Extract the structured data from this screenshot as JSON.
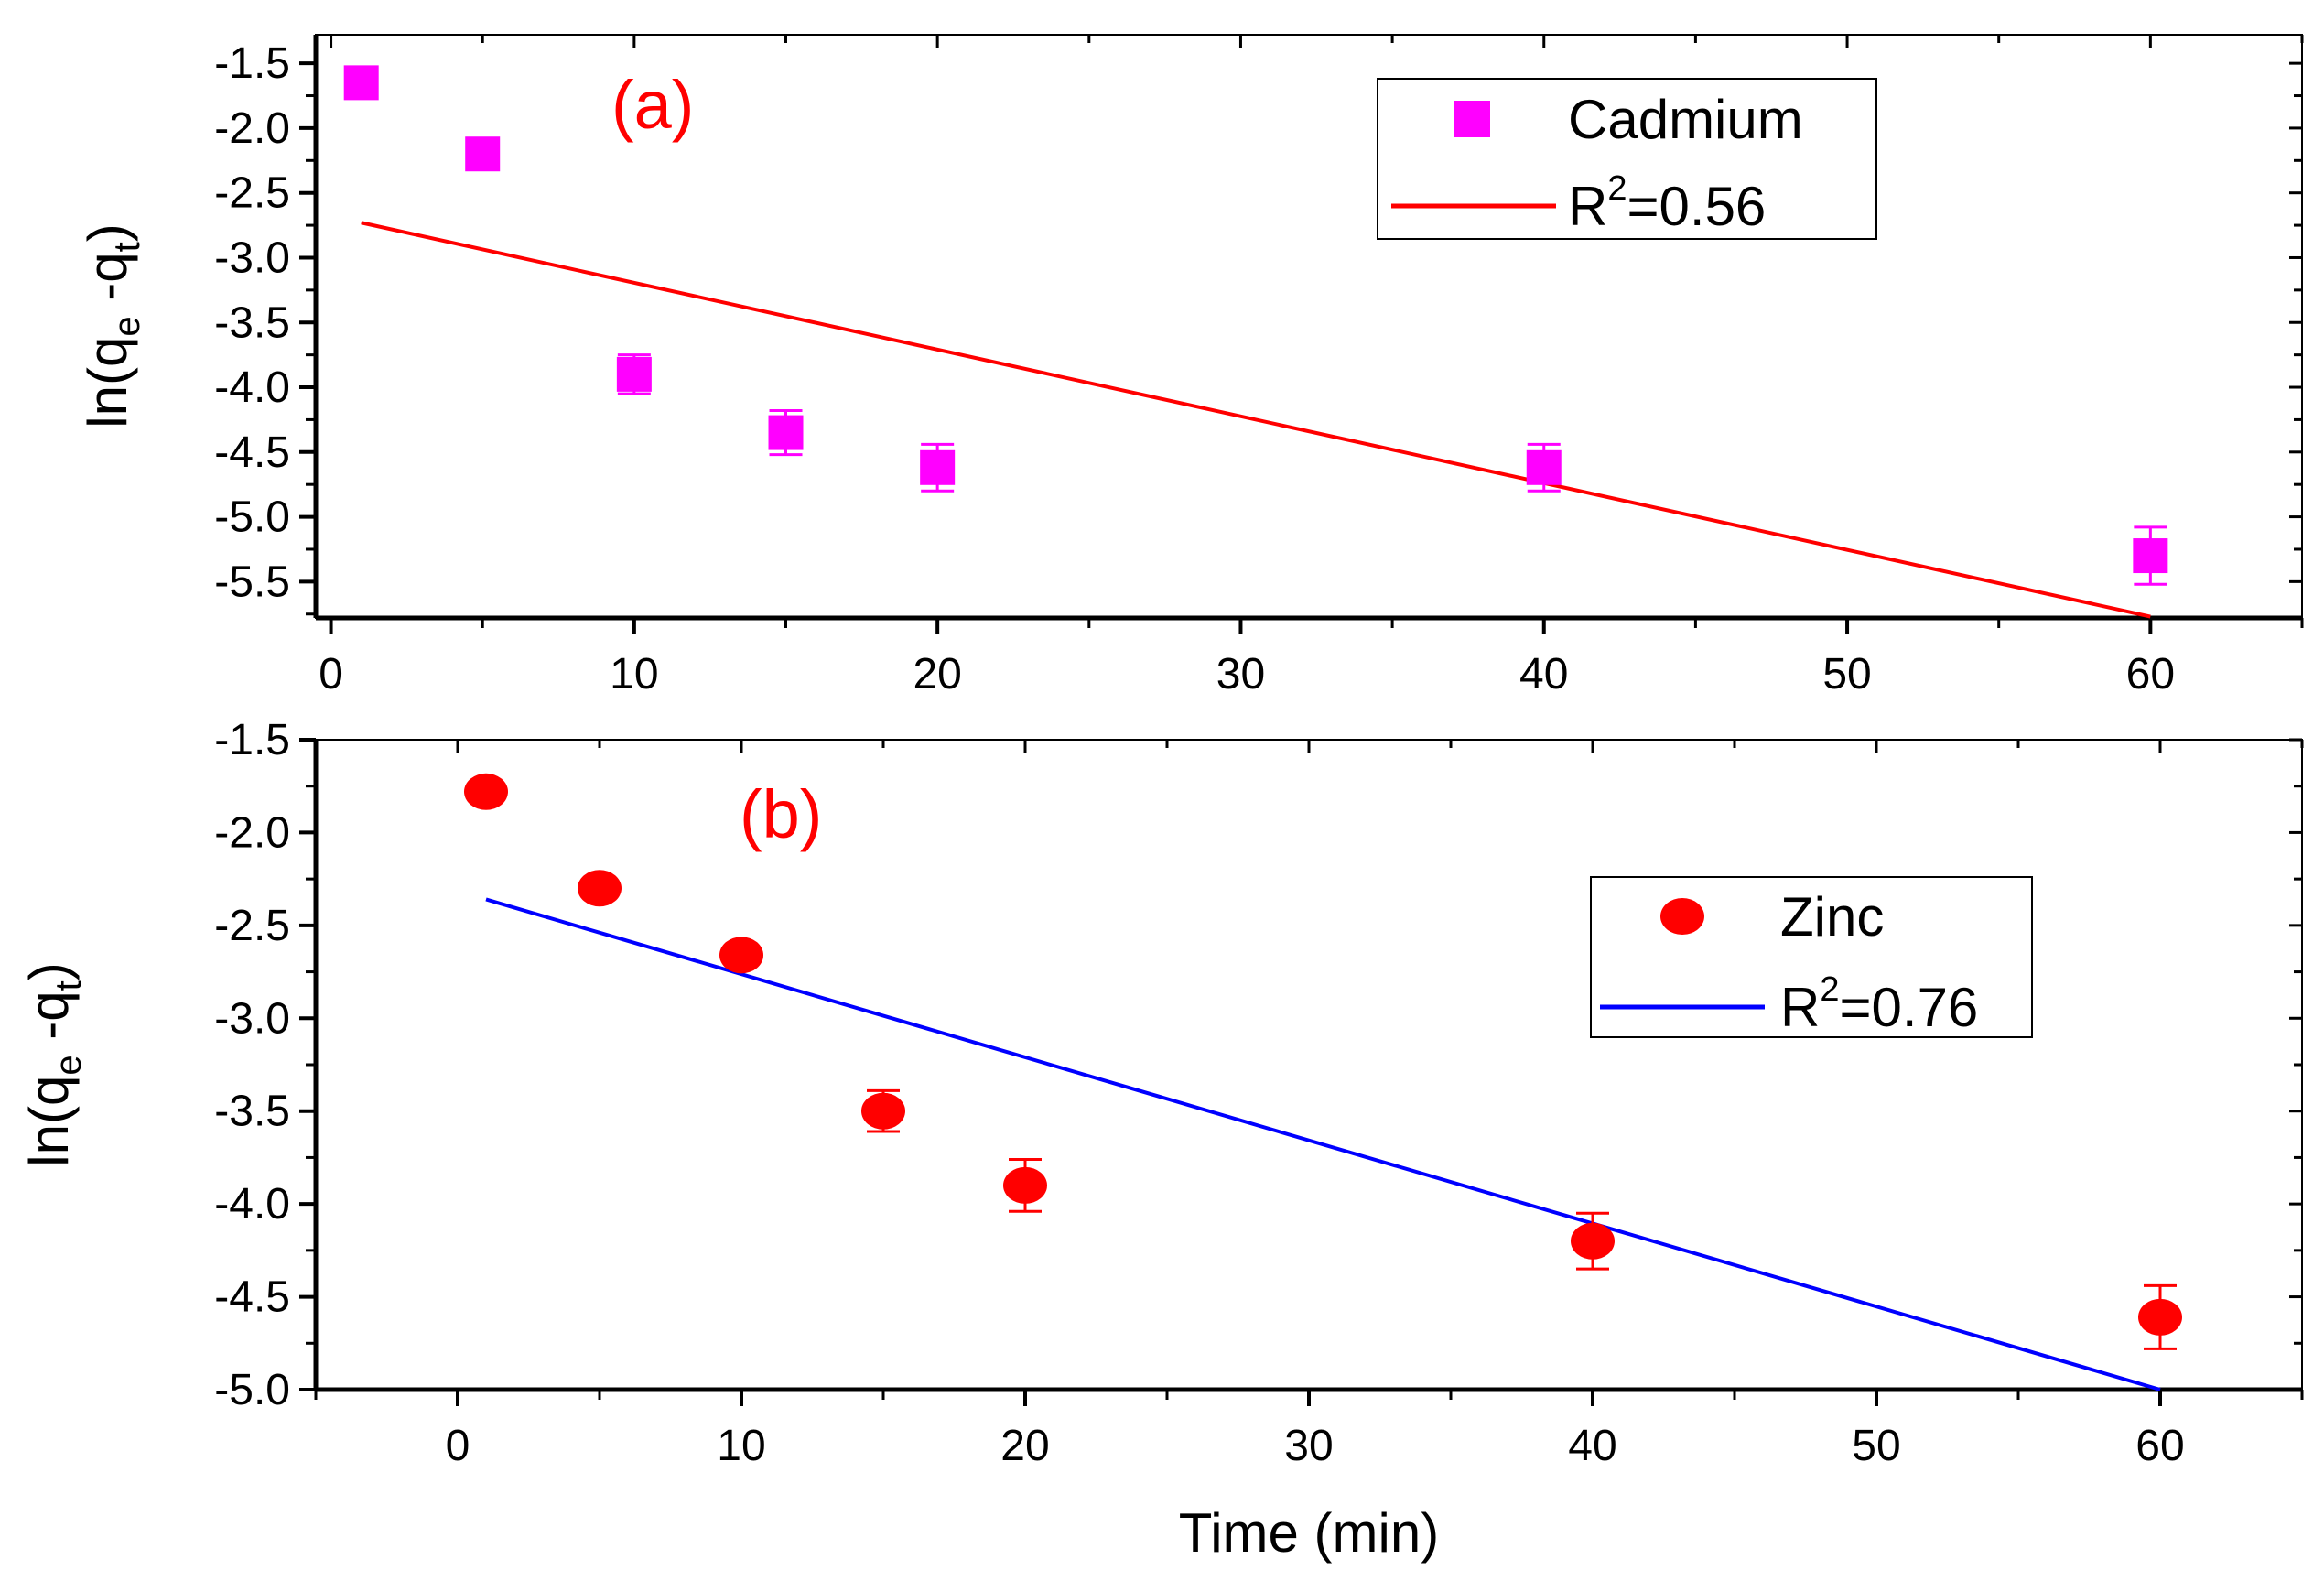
{
  "colors": {
    "axis": "#000000",
    "cadmium_marker": "#ff00ff",
    "zinc_marker": "#ff0000",
    "cadmium_fit": "#ff0000",
    "zinc_fit": "#0000ff",
    "panel_label": "#ff0000"
  },
  "chart_data": [
    {
      "type": "scatter",
      "panel_label": "(a)",
      "xlabel": "",
      "ylabel": {
        "base": "ln(q",
        "sub1": "e",
        "mid": " -q",
        "sub2": "t",
        "end": ")"
      },
      "xlim": [
        -0.5,
        65
      ],
      "ylim": [
        -5.78,
        -1.28
      ],
      "xticks": [
        0,
        10,
        20,
        30,
        40,
        50,
        60
      ],
      "yticks": [
        -1.5,
        -2.0,
        -2.5,
        -3.0,
        -3.5,
        -4.0,
        -4.5,
        -5.0,
        -5.5
      ],
      "tick_label_x": [
        "0",
        "10",
        "20",
        "30",
        "40",
        "50",
        "60"
      ],
      "tick_label_y": [
        "-1.5",
        "-2.0",
        "-2.5",
        "-3.0",
        "-3.5",
        "-4.0",
        "-4.5",
        "-5.0",
        "-5.5"
      ],
      "series": [
        {
          "name": "Cadmium",
          "marker": "square",
          "x": [
            1,
            5,
            10,
            15,
            20,
            40,
            60
          ],
          "y": [
            -1.65,
            -2.2,
            -3.9,
            -4.35,
            -4.62,
            -4.62,
            -5.3
          ],
          "err": [
            0.0,
            0.0,
            0.15,
            0.17,
            0.18,
            0.18,
            0.22
          ]
        }
      ],
      "fit": {
        "label_base": "R",
        "label_sup": "2",
        "label_value": "=0.56",
        "x": [
          1,
          60
        ],
        "y": [
          -2.73,
          -5.77
        ]
      },
      "legend_position": "top-right"
    },
    {
      "type": "scatter",
      "panel_label": "(b)",
      "xlabel": "Time (min)",
      "ylabel": {
        "base": "ln(q",
        "sub1": "e",
        "mid": " -q",
        "sub2": "t",
        "end": ")"
      },
      "xlim": [
        -5,
        65
      ],
      "ylim": [
        -5.0,
        -1.5
      ],
      "xticks": [
        0,
        10,
        20,
        30,
        40,
        50,
        60
      ],
      "yticks": [
        -1.5,
        -2.0,
        -2.5,
        -3.0,
        -3.5,
        -4.0,
        -4.5,
        -5.0
      ],
      "tick_label_x": [
        "0",
        "10",
        "20",
        "30",
        "40",
        "50",
        "60"
      ],
      "tick_label_y": [
        "-1.5",
        "-2.0",
        "-2.5",
        "-3.0",
        "-3.5",
        "-4.0",
        "-4.5",
        "-5.0"
      ],
      "series": [
        {
          "name": "Zinc",
          "marker": "circle",
          "x": [
            1,
            5,
            10,
            15,
            20,
            40,
            60
          ],
          "y": [
            -1.78,
            -2.3,
            -2.66,
            -3.5,
            -3.9,
            -4.2,
            -4.61
          ],
          "err": [
            0.0,
            0.0,
            0.0,
            0.11,
            0.14,
            0.15,
            0.17
          ]
        }
      ],
      "fit": {
        "label_base": "R",
        "label_sup": "2",
        "label_value": "=0.76",
        "x": [
          1,
          60
        ],
        "y": [
          -2.36,
          -5.0
        ]
      },
      "legend_position": "middle-right"
    }
  ]
}
